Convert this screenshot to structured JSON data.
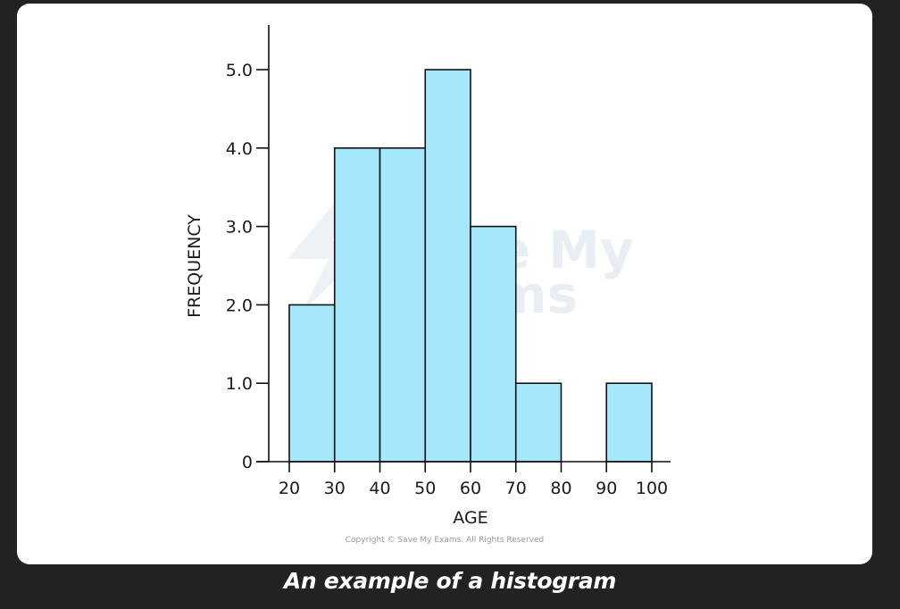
{
  "caption": "An example of a histogram",
  "copyright": "Copyright © Save My Exams. All Rights Reserved",
  "watermark": {
    "line1": "Save My",
    "line2": "Exams"
  },
  "colors": {
    "page_background": "#222222",
    "card_background": "#ffffff",
    "bar_fill": "#a5e8fb",
    "bar_stroke": "#111111",
    "axis": "#111111",
    "watermark": "#e9eef4"
  },
  "chart_data": {
    "type": "bar",
    "title": "",
    "xlabel": "AGE",
    "ylabel": "FREQUENCY",
    "xlim": [
      20,
      100
    ],
    "ylim": [
      0,
      5
    ],
    "x_ticks": [
      {
        "value": 20,
        "label": "20"
      },
      {
        "value": 30,
        "label": "30"
      },
      {
        "value": 40,
        "label": "40"
      },
      {
        "value": 50,
        "label": "50"
      },
      {
        "value": 60,
        "label": "60"
      },
      {
        "value": 70,
        "label": "70"
      },
      {
        "value": 80,
        "label": "80"
      },
      {
        "value": 90,
        "label": "90"
      },
      {
        "value": 100,
        "label": "100"
      }
    ],
    "y_ticks": [
      {
        "value": 0,
        "label": "0"
      },
      {
        "value": 1,
        "label": "1.0"
      },
      {
        "value": 2,
        "label": "2.0"
      },
      {
        "value": 3,
        "label": "3.0"
      },
      {
        "value": 4,
        "label": "4.0"
      },
      {
        "value": 5,
        "label": "5.0"
      }
    ],
    "bins": [
      {
        "from": 20,
        "to": 30,
        "value": 2
      },
      {
        "from": 30,
        "to": 40,
        "value": 4
      },
      {
        "from": 40,
        "to": 50,
        "value": 4
      },
      {
        "from": 50,
        "to": 60,
        "value": 5
      },
      {
        "from": 60,
        "to": 70,
        "value": 3
      },
      {
        "from": 70,
        "to": 80,
        "value": 1
      },
      {
        "from": 80,
        "to": 90,
        "value": 0
      },
      {
        "from": 90,
        "to": 100,
        "value": 1
      }
    ],
    "grid": false,
    "legend": "none"
  }
}
